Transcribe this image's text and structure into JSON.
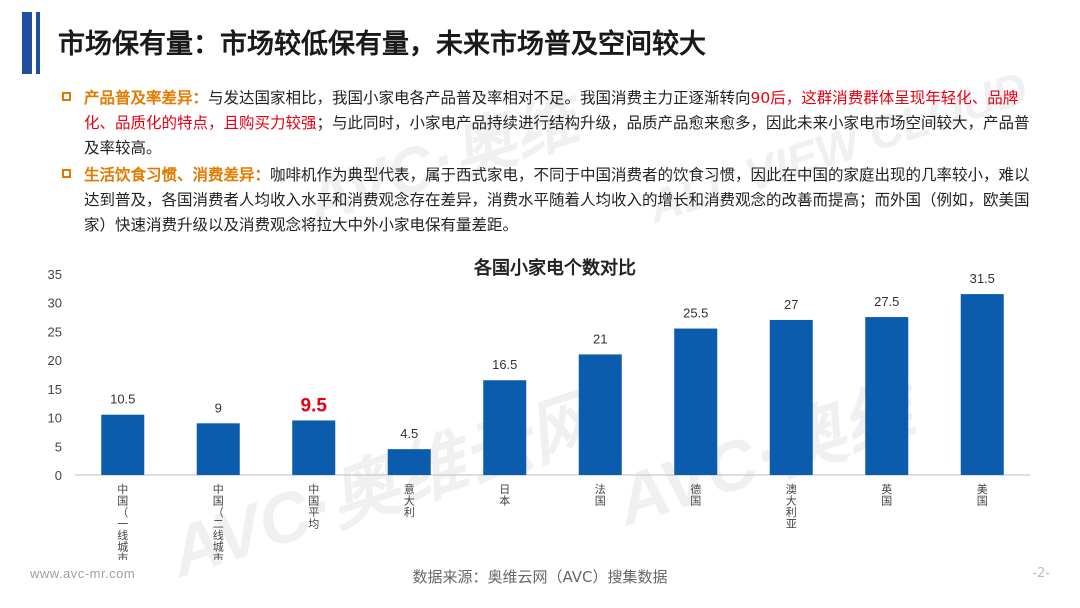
{
  "page": {
    "title": "市场保有量：市场较低保有量，未来市场普及空间较大",
    "page_number": "-2-"
  },
  "bullets": [
    {
      "label": "产品普及率差异：",
      "segments": [
        {
          "text": "与发达国家相比，我国小家电各产品普及率相对不足。我国消费主力正逐渐转向",
          "red": false
        },
        {
          "text": "90后，这群消费群体呈现年轻化、品牌化、品质化的特点，且购买力较强",
          "red": true
        },
        {
          "text": "；与此同时，小家电产品持续进行结构升级，品质产品愈来愈多，因此未来小家电市场空间较大，产品普及率较高。",
          "red": false
        }
      ]
    },
    {
      "label": "生活饮食习惯、消费差异：",
      "segments": [
        {
          "text": "咖啡机作为典型代表，属于西式家电，不同于中国消费者的饮食习惯，因此在中国的家庭出现的几率较小，难以达到普及，各国消费者人均收入水平和消费观念存在差异，消费水平随着人均收入的增长和消费观念的改善而提高；而外国（例如，欧美国家）快速消费升级以及消费观念将拉大中外小家电保有量差距。",
          "red": false
        }
      ]
    }
  ],
  "chart_data": {
    "type": "bar",
    "title": "各国小家电个数对比",
    "categories": [
      "中国（一线城市）",
      "中国（二线城市）",
      "中国平均",
      "意大利",
      "日本",
      "法国",
      "德国",
      "澳大利亚",
      "英国",
      "美国"
    ],
    "values": [
      10.5,
      9,
      9.5,
      4.5,
      16.5,
      21,
      25.5,
      27,
      27.5,
      31.5
    ],
    "value_labels": [
      "10.5",
      "9",
      "9.5",
      "4.5",
      "16.5",
      "21",
      "25.5",
      "27",
      "27.5",
      "31.5"
    ],
    "highlight_index": 2,
    "ylim": [
      0,
      35
    ],
    "yticks": [
      "0",
      "5",
      "10",
      "15",
      "20",
      "25",
      "30",
      "35"
    ],
    "xlabel": "",
    "ylabel": "",
    "grid": false,
    "bar_color": "#0b5cad",
    "highlight_label_color": "#e60012"
  },
  "footer": {
    "website": "www.avc-mr.com",
    "source": "数据来源：奥维云网（AVC）搜集数据"
  },
  "colors": {
    "accent": "#1f4e9d",
    "label_orange": "#e07b00",
    "emphasis_red": "#e60012"
  }
}
